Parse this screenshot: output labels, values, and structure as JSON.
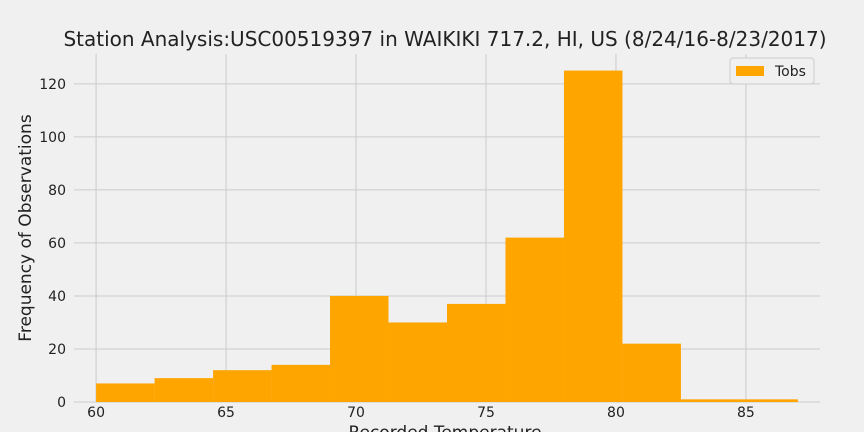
{
  "chart_data": {
    "type": "bar",
    "title": "Station Analysis:USC00519397 in WAIKIKI 717.2, HI, US (8/24/16-8/23/2017)",
    "xlabel": "Recorded Temperature",
    "ylabel": "Frequency of Observations",
    "legend": {
      "position": "top-right",
      "entries": [
        "Tobs"
      ]
    },
    "grid": true,
    "xlim": [
      59.15,
      87.85
    ],
    "ylim": [
      0,
      131.25
    ],
    "xticks": [
      60,
      65,
      70,
      75,
      80,
      85
    ],
    "yticks": [
      0,
      20,
      40,
      60,
      80,
      100,
      120
    ],
    "series": [
      {
        "name": "Tobs",
        "color": "#ffa500",
        "bin_edges": [
          60,
          62.25,
          64.5,
          66.75,
          69,
          71.25,
          73.5,
          75.75,
          78,
          80.25,
          82.5,
          84.75,
          87
        ],
        "values": [
          7,
          9,
          12,
          14,
          40,
          30,
          37,
          62,
          125,
          22,
          1,
          1
        ]
      }
    ]
  }
}
